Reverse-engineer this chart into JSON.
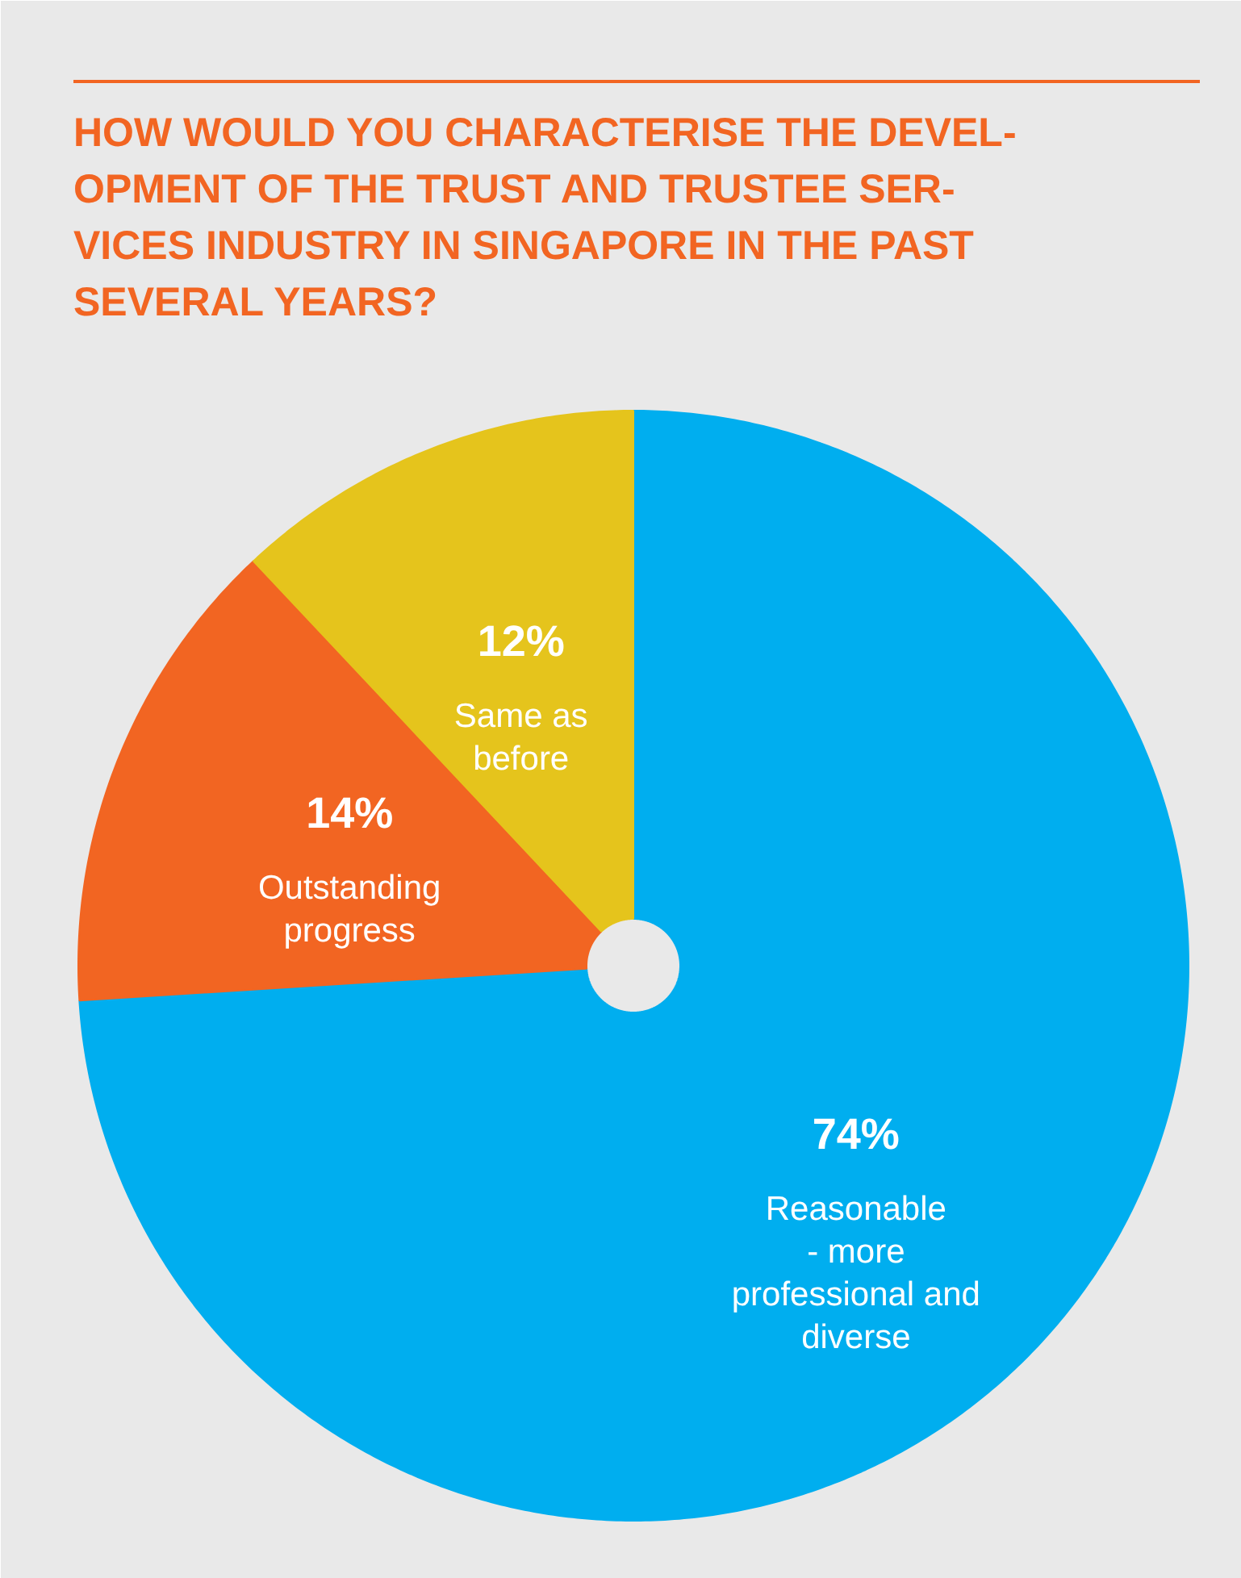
{
  "chart_data": {
    "type": "pie",
    "title": "HOW WOULD YOU CHARACTERISE THE DEVEL-\nOPMENT OF THE TRUST AND TRUSTEE SER-\nVICES INDUSTRY IN SINGAPORE IN THE PAST\nSEVERAL YEARS?",
    "categories": [
      "Reasonable\n- more\nprofessional and\ndiverse",
      "Outstanding\nprogress",
      "Same as\nbefore"
    ],
    "values": [
      74,
      14,
      12
    ],
    "value_labels": [
      "74%",
      "14%",
      "12%"
    ],
    "colors": [
      "#00aeef",
      "#f26522",
      "#e5c41c"
    ]
  }
}
